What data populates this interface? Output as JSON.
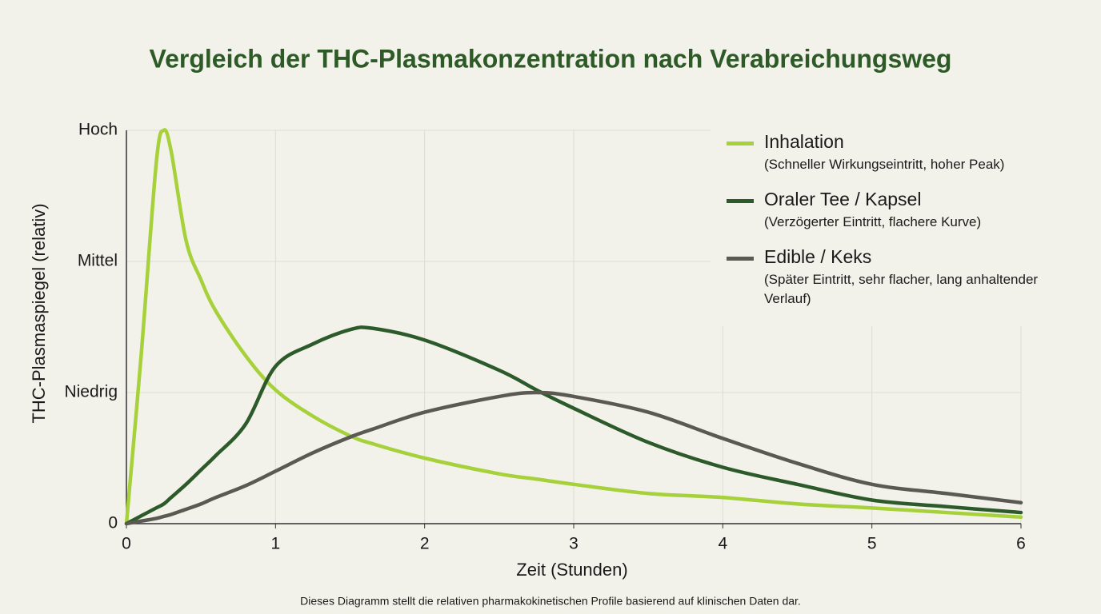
{
  "chart_data": {
    "type": "line",
    "title": "Vergleich der THC-Plasmakonzentration nach Verabreichungsweg",
    "x_label": "Zeit (Stunden)",
    "y_label": "THC-Plasmaspiegel (relativ)",
    "footnote": "Dieses Diagramm stellt die relativen pharmakokinetischen Profile basierend auf klinischen Daten dar.",
    "x": [
      0,
      0.1,
      0.2,
      0.25,
      0.3,
      0.4,
      0.5,
      0.6,
      0.8,
      1,
      1.25,
      1.5,
      1.65,
      2,
      2.5,
      2.75,
      3,
      3.5,
      4,
      4.5,
      5,
      5.5,
      6
    ],
    "series": [
      {
        "name": "Inhalation",
        "description": "(Schneller Wirkungseintritt, hoher Peak)",
        "color": "#a6d13a",
        "values": [
          0,
          1.3,
          2.75,
          3.0,
          2.84,
          2.16,
          1.86,
          1.62,
          1.28,
          1.02,
          0.82,
          0.67,
          0.61,
          0.5,
          0.38,
          0.34,
          0.3,
          0.23,
          0.2,
          0.15,
          0.12,
          0.085,
          0.05
        ]
      },
      {
        "name": "Oraler Tee / Kapsel",
        "description": "(Verzögerter Eintritt, flachere Kurve)",
        "color": "#2d5a2a",
        "values": [
          0,
          0.06,
          0.12,
          0.15,
          0.2,
          0.3,
          0.41,
          0.52,
          0.76,
          1.2,
          1.37,
          1.48,
          1.49,
          1.4,
          1.17,
          1.02,
          0.88,
          0.62,
          0.43,
          0.3,
          0.18,
          0.13,
          0.085
        ]
      },
      {
        "name": "Edible / Keks",
        "description": "(Später Eintritt, sehr flacher, lang anhaltender Verlauf)",
        "color": "#5a5a52",
        "values": [
          0,
          0.02,
          0.04,
          0.055,
          0.07,
          0.11,
          0.15,
          0.2,
          0.29,
          0.4,
          0.54,
          0.66,
          0.72,
          0.85,
          0.97,
          1.0,
          0.97,
          0.85,
          0.65,
          0.46,
          0.3,
          0.23,
          0.16
        ]
      }
    ],
    "xlim": [
      0,
      6
    ],
    "xticks": [
      0,
      1,
      2,
      3,
      4,
      5,
      6
    ],
    "ylim": [
      0,
      3
    ],
    "yticks": [
      0,
      {
        "value": 1,
        "label": "Niedrig"
      },
      {
        "value": 2,
        "label": "Mittel"
      },
      {
        "value": 3,
        "label": "Hoch"
      }
    ],
    "grid": true
  }
}
